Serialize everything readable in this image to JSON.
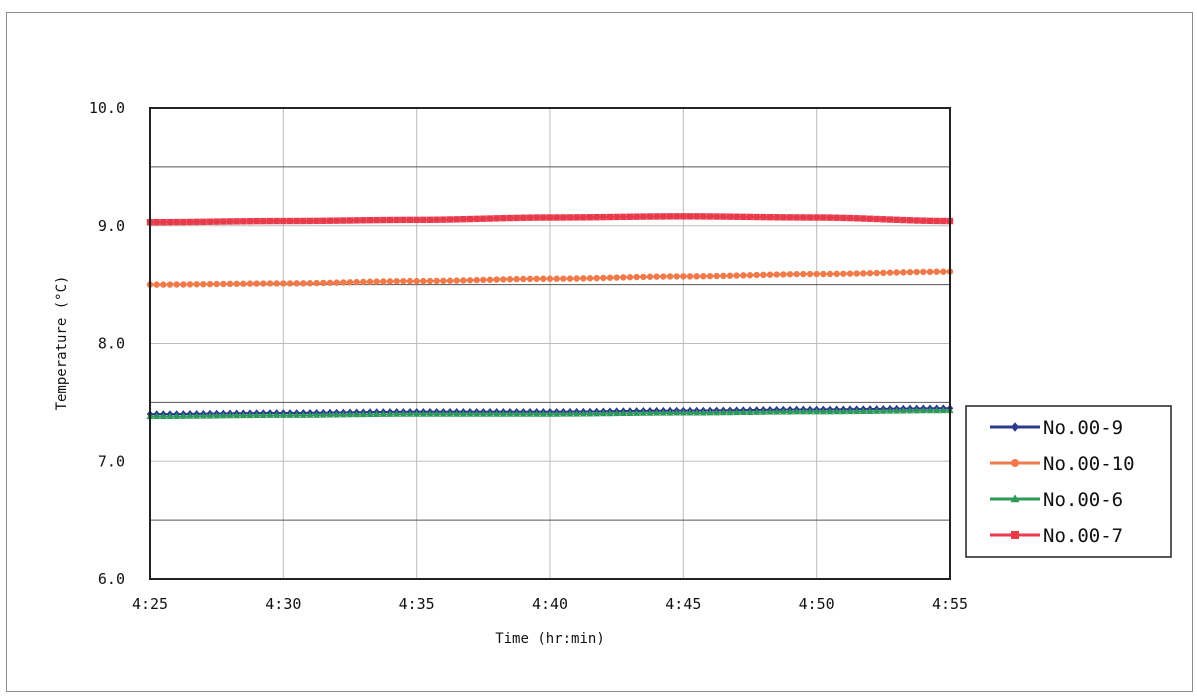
{
  "chart_data": {
    "type": "line",
    "title": "",
    "xlabel": "Time (hr:min)",
    "ylabel": "Temperature (°C)",
    "x_range_minutes": [
      0,
      30
    ],
    "x_tick_labels": [
      "4:25",
      "4:30",
      "4:35",
      "4:40",
      "4:45",
      "4:50",
      "4:55"
    ],
    "ylim": [
      6.0,
      10.0
    ],
    "y_tick_labels": [
      "6.0",
      "7.0",
      "8.0",
      "9.0",
      "10.0"
    ],
    "grid": true,
    "legend_position": "right",
    "x": [
      "4:25",
      "4:30",
      "4:35",
      "4:40",
      "4:45",
      "4:50",
      "4:55"
    ],
    "series": [
      {
        "name": "No.00-9",
        "color": "#2b3a8c",
        "marker": "diamond",
        "values": [
          7.4,
          7.41,
          7.42,
          7.42,
          7.43,
          7.44,
          7.45
        ]
      },
      {
        "name": "No.00-10",
        "color": "#f07a4a",
        "marker": "circle",
        "values": [
          8.5,
          8.51,
          8.53,
          8.55,
          8.57,
          8.59,
          8.61
        ]
      },
      {
        "name": "No.00-6",
        "color": "#2e9a5a",
        "marker": "triangle",
        "values": [
          7.38,
          7.39,
          7.4,
          7.4,
          7.41,
          7.42,
          7.43
        ]
      },
      {
        "name": "No.00-7",
        "color": "#e83a4a",
        "marker": "square",
        "values": [
          9.03,
          9.04,
          9.05,
          9.07,
          9.08,
          9.07,
          9.04
        ]
      }
    ]
  }
}
